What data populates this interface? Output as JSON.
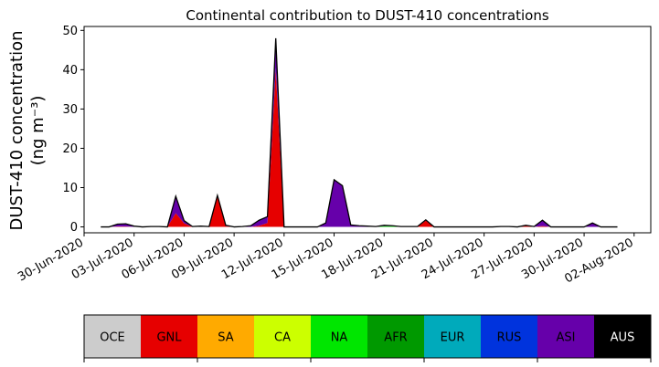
{
  "chart_data": {
    "type": "area",
    "stacked": true,
    "title": "Continental contribution to DUST-410 concentrations",
    "ylabel_line1": "DUST-410 concentration",
    "ylabel_line2": "(ng m⁻³)",
    "xlabel": "",
    "ylim": [
      -1.5,
      51
    ],
    "yticks": [
      0,
      10,
      20,
      30,
      40,
      50
    ],
    "xlim_day": [
      -1.0,
      33.0
    ],
    "x_epoch": "2020-07-01",
    "xtick_days": [
      -1,
      2,
      5,
      8,
      11,
      14,
      17,
      20,
      23,
      26,
      29,
      32
    ],
    "xticks": [
      "30-Jun-2020",
      "03-Jul-2020",
      "06-Jul-2020",
      "09-Jul-2020",
      "12-Jul-2020",
      "15-Jul-2020",
      "18-Jul-2020",
      "21-Jul-2020",
      "24-Jul-2020",
      "27-Jul-2020",
      "30-Jul-2020",
      "02-Aug-2020"
    ],
    "x": [
      0.0,
      0.5,
      1.0,
      1.5,
      2.0,
      2.5,
      3.0,
      3.5,
      4.0,
      4.5,
      5.0,
      5.5,
      6.0,
      6.5,
      7.0,
      7.5,
      8.0,
      8.5,
      9.0,
      9.5,
      10.0,
      10.5,
      11.0,
      11.5,
      12.0,
      12.5,
      13.0,
      13.5,
      14.0,
      14.5,
      15.0,
      15.5,
      16.0,
      16.5,
      17.0,
      17.5,
      18.0,
      18.5,
      19.0,
      19.5,
      20.0,
      20.5,
      21.0,
      21.5,
      22.0,
      22.5,
      23.0,
      23.5,
      24.0,
      24.5,
      25.0,
      25.5,
      26.0,
      26.5,
      27.0,
      27.5,
      28.0,
      28.5,
      29.0,
      29.5,
      30.0,
      30.5,
      31.0
    ],
    "series": [
      {
        "name": "OCE",
        "color": "#cccccc",
        "values": [
          0,
          0,
          0,
          0,
          0,
          0,
          0,
          0,
          0,
          0,
          0,
          0,
          0,
          0,
          0,
          0,
          0,
          0,
          0,
          0,
          0,
          0,
          0,
          0,
          0,
          0,
          0,
          0,
          0,
          0,
          0,
          0,
          0,
          0,
          0,
          0,
          0,
          0,
          0,
          0,
          0,
          0,
          0,
          0,
          0,
          0,
          0,
          0,
          0,
          0,
          0,
          0,
          0,
          0,
          0,
          0,
          0,
          0,
          0,
          0,
          0,
          0,
          0
        ]
      },
      {
        "name": "GNL",
        "color": "#e60000",
        "values": [
          0,
          0,
          0.1,
          0.1,
          0,
          0,
          0,
          0,
          0,
          3.5,
          0.9,
          0,
          0,
          0,
          7.8,
          0.2,
          0,
          0,
          0,
          0.3,
          1.0,
          40.0,
          0,
          0,
          0,
          0,
          0,
          0,
          0,
          0,
          0,
          0,
          0,
          0,
          0,
          0,
          0,
          0,
          0,
          1.6,
          0,
          0,
          0,
          0,
          0,
          0,
          0,
          0,
          0,
          0,
          0,
          0.3,
          0,
          0.2,
          0,
          0,
          0,
          0,
          0,
          0,
          0,
          0,
          0
        ]
      },
      {
        "name": "SA",
        "color": "#ffaa00",
        "values": [
          0,
          0,
          0,
          0,
          0,
          0,
          0,
          0,
          0,
          0,
          0,
          0,
          0,
          0,
          0,
          0,
          0,
          0,
          0,
          0,
          0,
          0,
          0,
          0,
          0,
          0,
          0,
          0,
          0,
          0,
          0,
          0,
          0,
          0,
          0,
          0,
          0,
          0,
          0,
          0,
          0,
          0,
          0,
          0,
          0,
          0,
          0,
          0,
          0,
          0,
          0,
          0,
          0,
          0,
          0,
          0,
          0,
          0,
          0,
          0,
          0,
          0,
          0
        ]
      },
      {
        "name": "CA",
        "color": "#ccff00",
        "values": [
          0,
          0,
          0,
          0,
          0,
          0,
          0,
          0,
          0,
          0,
          0,
          0,
          0,
          0,
          0,
          0,
          0,
          0,
          0,
          0,
          0,
          0,
          0,
          0,
          0,
          0,
          0,
          0,
          0,
          0,
          0,
          0,
          0,
          0,
          0,
          0,
          0,
          0,
          0,
          0,
          0,
          0,
          0,
          0,
          0,
          0,
          0,
          0,
          0.1,
          0.1,
          0,
          0,
          0,
          0,
          0,
          0,
          0,
          0,
          0,
          0,
          0,
          0,
          0
        ]
      },
      {
        "name": "NA",
        "color": "#00e600",
        "values": [
          0,
          0,
          0,
          0,
          0,
          0,
          0,
          0,
          0,
          0,
          0,
          0,
          0,
          0,
          0,
          0,
          0,
          0,
          0,
          0,
          0,
          0,
          0,
          0,
          0,
          0,
          0,
          0,
          0,
          0,
          0,
          0,
          0,
          0,
          0.2,
          0.2,
          0,
          0,
          0,
          0,
          0,
          0,
          0,
          0,
          0,
          0,
          0,
          0,
          0,
          0,
          0,
          0,
          0,
          0,
          0,
          0,
          0,
          0,
          0,
          0,
          0,
          0,
          0
        ]
      },
      {
        "name": "AFR",
        "color": "#009900",
        "values": [
          0,
          0,
          0,
          0,
          0,
          0,
          0,
          0,
          0,
          0,
          0,
          0,
          0,
          0,
          0,
          0,
          0,
          0,
          0,
          0,
          0,
          0,
          0,
          0,
          0,
          0,
          0,
          0,
          0,
          0,
          0,
          0,
          0,
          0,
          0,
          0,
          0,
          0,
          0,
          0,
          0,
          0,
          0,
          0,
          0,
          0,
          0,
          0,
          0,
          0,
          0,
          0,
          0,
          0,
          0,
          0,
          0,
          0,
          0,
          0,
          0,
          0,
          0
        ]
      },
      {
        "name": "EUR",
        "color": "#00aabb",
        "values": [
          0,
          0,
          0,
          0,
          0,
          0,
          0,
          0,
          0,
          0,
          0,
          0,
          0,
          0,
          0,
          0,
          0,
          0,
          0,
          0,
          0,
          0,
          0,
          0,
          0,
          0,
          0,
          0,
          0,
          0,
          0,
          0,
          0,
          0,
          0,
          0,
          0,
          0,
          0,
          0,
          0,
          0,
          0,
          0,
          0,
          0,
          0,
          0,
          0,
          0,
          0,
          0,
          0,
          0,
          0,
          0,
          0,
          0,
          0,
          0,
          0,
          0,
          0
        ]
      },
      {
        "name": "RUS",
        "color": "#0033dd",
        "values": [
          0,
          0,
          0,
          0,
          0,
          0,
          0,
          0,
          0,
          0,
          0,
          0,
          0,
          0,
          0,
          0,
          0,
          0,
          0,
          0,
          0,
          0.5,
          0,
          0,
          0,
          0,
          0,
          0,
          0,
          0,
          0,
          0,
          0,
          0,
          0,
          0,
          0,
          0,
          0,
          0,
          0,
          0,
          0,
          0,
          0,
          0,
          0,
          0,
          0,
          0,
          0,
          0,
          0,
          0,
          0,
          0,
          0,
          0,
          0,
          0,
          0,
          0,
          0
        ]
      },
      {
        "name": "ASI",
        "color": "#6600aa",
        "values": [
          0,
          0,
          0.6,
          0.7,
          0.2,
          0,
          0.1,
          0.1,
          0,
          4.3,
          0.7,
          0.1,
          0.2,
          0.1,
          0.2,
          0.2,
          0,
          0.1,
          0.3,
          1.4,
          1.6,
          7.5,
          0,
          0,
          0,
          0,
          0,
          1.0,
          12.0,
          10.5,
          0.5,
          0.3,
          0.2,
          0.1,
          0.2,
          0.1,
          0.1,
          0.1,
          0.1,
          0.2,
          0,
          0,
          0,
          0,
          0,
          0,
          0,
          0,
          0,
          0,
          0,
          0.1,
          0.1,
          1.5,
          0,
          0,
          0,
          0,
          0,
          1.0,
          0,
          0,
          0
        ]
      },
      {
        "name": "AUS",
        "color": "#000000",
        "values": [
          0,
          0,
          0,
          0,
          0,
          0,
          0,
          0,
          0,
          0,
          0,
          0,
          0,
          0,
          0,
          0,
          0,
          0,
          0,
          0,
          0,
          0,
          0,
          0,
          0,
          0,
          0,
          0,
          0,
          0,
          0,
          0,
          0,
          0,
          0,
          0,
          0,
          0,
          0,
          0,
          0,
          0,
          0,
          0,
          0,
          0,
          0,
          0,
          0,
          0,
          0,
          0,
          0,
          0,
          0,
          0,
          0,
          0,
          0,
          0,
          0,
          0,
          0
        ]
      }
    ],
    "legend": {
      "placement": "bottom",
      "text_colors": [
        "#000000",
        "#000000",
        "#000000",
        "#000000",
        "#000000",
        "#000000",
        "#000000",
        "#000000",
        "#000000",
        "#ffffff"
      ]
    }
  }
}
